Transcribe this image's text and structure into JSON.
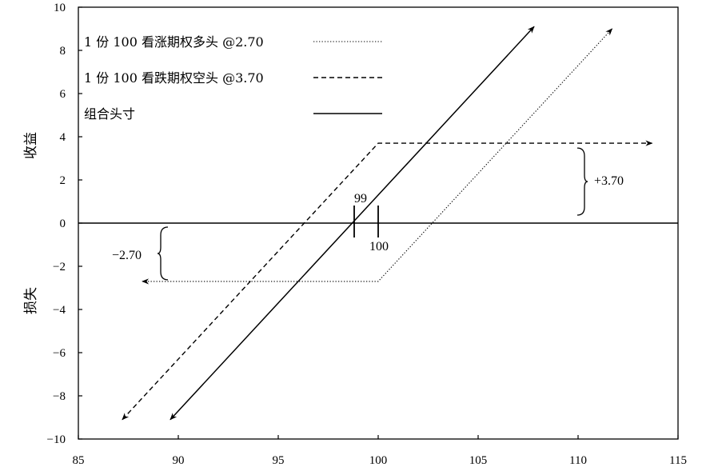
{
  "chart_data": {
    "type": "line",
    "title": "",
    "xlabel": "",
    "ylabel_top": "收益",
    "ylabel_bottom": "损失",
    "xlim": [
      85,
      115
    ],
    "ylim": [
      -10,
      10
    ],
    "x_ticks": [
      85,
      90,
      95,
      100,
      105,
      110,
      115
    ],
    "y_ticks": [
      10,
      8,
      6,
      4,
      2,
      0,
      -2,
      -4,
      -6,
      -8,
      -10
    ],
    "grid": false,
    "legend_position": "top-left",
    "series": [
      {
        "name": "1 份 100 看涨期权多头 @2.70",
        "style": "dotted",
        "points": [
          [
            88.2,
            -2.7
          ],
          [
            100,
            -2.7
          ],
          [
            111.7,
            9.0
          ]
        ]
      },
      {
        "name": "1 份 100 看跌期权空头 @3.70",
        "style": "dashed",
        "points": [
          [
            87.2,
            -9.1
          ],
          [
            100,
            3.7
          ],
          [
            113.7,
            3.7
          ]
        ]
      },
      {
        "name": "组合头寸",
        "style": "solid",
        "points": [
          [
            89.6,
            -9.1
          ],
          [
            107.8,
            9.1
          ]
        ]
      }
    ],
    "annotations": [
      {
        "text": "99",
        "x": 99
      },
      {
        "text": "100",
        "x": 100
      },
      {
        "text": "+3.70",
        "y": 3.7
      },
      {
        "text": "−2.70",
        "y": -2.7
      }
    ]
  }
}
